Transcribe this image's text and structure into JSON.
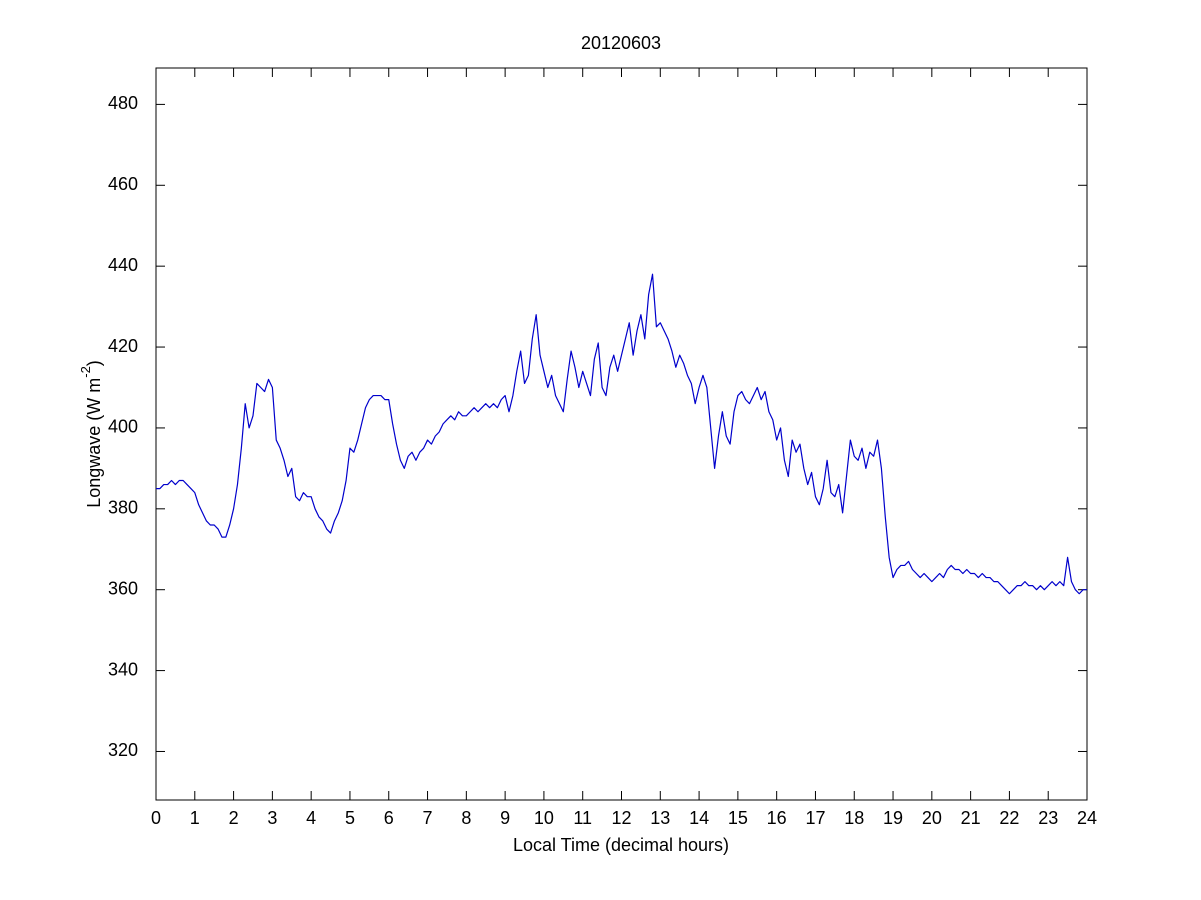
{
  "chart_data": {
    "type": "line",
    "title": "20120603",
    "x_label": "Local Time (decimal hours)",
    "y_label": [
      "Longwave (W m",
      "-2",
      ")"
    ],
    "xlim": [
      0,
      24
    ],
    "xticks": [
      0,
      1,
      2,
      3,
      4,
      5,
      6,
      7,
      8,
      9,
      10,
      11,
      12,
      13,
      14,
      15,
      16,
      17,
      18,
      19,
      20,
      21,
      22,
      23,
      24
    ],
    "ylim": [
      308,
      489
    ],
    "yticks": [
      320,
      340,
      360,
      380,
      400,
      420,
      440,
      460,
      480
    ],
    "x": [
      0,
      0.1,
      0.2,
      0.3,
      0.4,
      0.5,
      0.6,
      0.7,
      0.8,
      0.9,
      1,
      1.1,
      1.2,
      1.3,
      1.4,
      1.5,
      1.6,
      1.7,
      1.8,
      1.9,
      2,
      2.1,
      2.2,
      2.3,
      2.4,
      2.5,
      2.6,
      2.7,
      2.8,
      2.9,
      3,
      3.1,
      3.2,
      3.3,
      3.4,
      3.5,
      3.6,
      3.7,
      3.8,
      3.9,
      4,
      4.1,
      4.2,
      4.3,
      4.4,
      4.5,
      4.6,
      4.7,
      4.8,
      4.9,
      5,
      5.1,
      5.2,
      5.3,
      5.4,
      5.5,
      5.6,
      5.7,
      5.8,
      5.9,
      6,
      6.1,
      6.2,
      6.3,
      6.4,
      6.5,
      6.6,
      6.7,
      6.8,
      6.9,
      7,
      7.1,
      7.2,
      7.3,
      7.4,
      7.5,
      7.6,
      7.7,
      7.8,
      7.9,
      8,
      8.1,
      8.2,
      8.3,
      8.4,
      8.5,
      8.6,
      8.7,
      8.8,
      8.9,
      9,
      9.1,
      9.2,
      9.3,
      9.4,
      9.5,
      9.6,
      9.7,
      9.8,
      9.9,
      10,
      10.1,
      10.2,
      10.3,
      10.4,
      10.5,
      10.6,
      10.7,
      10.8,
      10.9,
      11,
      11.1,
      11.2,
      11.3,
      11.4,
      11.5,
      11.6,
      11.7,
      11.8,
      11.9,
      12,
      12.1,
      12.2,
      12.3,
      12.4,
      12.5,
      12.6,
      12.7,
      12.8,
      12.9,
      13,
      13.1,
      13.2,
      13.3,
      13.4,
      13.5,
      13.6,
      13.7,
      13.8,
      13.9,
      14,
      14.1,
      14.2,
      14.3,
      14.4,
      14.5,
      14.6,
      14.7,
      14.8,
      14.9,
      15,
      15.1,
      15.2,
      15.3,
      15.4,
      15.5,
      15.6,
      15.7,
      15.8,
      15.9,
      16,
      16.1,
      16.2,
      16.3,
      16.4,
      16.5,
      16.6,
      16.7,
      16.8,
      16.9,
      17,
      17.1,
      17.2,
      17.3,
      17.4,
      17.5,
      17.6,
      17.7,
      17.8,
      17.9,
      18,
      18.1,
      18.2,
      18.3,
      18.4,
      18.5,
      18.6,
      18.7,
      18.8,
      18.9,
      19,
      19.1,
      19.2,
      19.3,
      19.4,
      19.5,
      19.6,
      19.7,
      19.8,
      19.9,
      20,
      20.1,
      20.2,
      20.3,
      20.4,
      20.5,
      20.6,
      20.7,
      20.8,
      20.9,
      21,
      21.1,
      21.2,
      21.3,
      21.4,
      21.5,
      21.6,
      21.7,
      21.8,
      21.9,
      22,
      22.1,
      22.2,
      22.3,
      22.4,
      22.5,
      22.6,
      22.7,
      22.8,
      22.9,
      23,
      23.1,
      23.2,
      23.3,
      23.4,
      23.5,
      23.6,
      23.7,
      23.8,
      23.9,
      24
    ],
    "series": [
      {
        "color": "#0000cc",
        "values": [
          385,
          385,
          386,
          386,
          387,
          386,
          387,
          387,
          386,
          385,
          384,
          381,
          379,
          377,
          376,
          376,
          375,
          373,
          373,
          376,
          380,
          386,
          395,
          406,
          400,
          403,
          411,
          410,
          409,
          412,
          410,
          397,
          395,
          392,
          388,
          390,
          383,
          382,
          384,
          383,
          383,
          380,
          378,
          377,
          375,
          374,
          377,
          379,
          382,
          387,
          395,
          394,
          397,
          401,
          405,
          407,
          408,
          408,
          408,
          407,
          407,
          401,
          396,
          392,
          390,
          393,
          394,
          392,
          394,
          395,
          397,
          396,
          398,
          399,
          401,
          402,
          403,
          402,
          404,
          403,
          403,
          404,
          405,
          404,
          405,
          406,
          405,
          406,
          405,
          407,
          408,
          404,
          408,
          414,
          419,
          411,
          413,
          422,
          428,
          418,
          414,
          410,
          413,
          408,
          406,
          404,
          412,
          419,
          415,
          410,
          414,
          411,
          408,
          417,
          421,
          410,
          408,
          415,
          418,
          414,
          418,
          422,
          426,
          418,
          424,
          428,
          422,
          433,
          438,
          425,
          426,
          424,
          422,
          419,
          415,
          418,
          416,
          413,
          411,
          406,
          410,
          413,
          410,
          400,
          390,
          398,
          404,
          398,
          396,
          404,
          408,
          409,
          407,
          406,
          408,
          410,
          407,
          409,
          404,
          402,
          397,
          400,
          392,
          388,
          397,
          394,
          396,
          390,
          386,
          389,
          383,
          381,
          385,
          392,
          384,
          383,
          386,
          379,
          388,
          397,
          393,
          392,
          395,
          390,
          394,
          393,
          397,
          390,
          378,
          368,
          363,
          365,
          366,
          366,
          367,
          365,
          364,
          363,
          364,
          363,
          362,
          363,
          364,
          363,
          365,
          366,
          365,
          365,
          364,
          365,
          364,
          364,
          363,
          364,
          363,
          363,
          362,
          362,
          361,
          360,
          359,
          360,
          361,
          361,
          362,
          361,
          361,
          360,
          361,
          360,
          361,
          362,
          361,
          362,
          361,
          368,
          362,
          360,
          359,
          360,
          360
        ]
      }
    ]
  }
}
